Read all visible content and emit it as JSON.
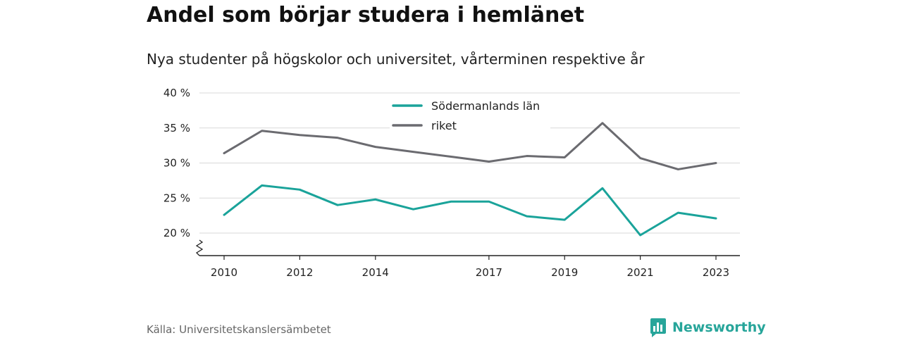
{
  "title": "Andel som börjar studera i hemlänet",
  "subtitle": "Nya studenter på högskolor och universitet, vårterminen respektive år",
  "source": "Källa: Universitetskanslersämbetet",
  "brand": {
    "name": "Newsworthy",
    "icon": "newsworthy-logo-icon",
    "color": "#27a59a"
  },
  "chart_data": {
    "type": "line",
    "x": [
      2010,
      2011,
      2012,
      2013,
      2014,
      2015,
      2016,
      2017,
      2018,
      2019,
      2020,
      2021,
      2022,
      2023
    ],
    "x_tick_labels": [
      "2010",
      "2012",
      "2014",
      "2017",
      "2019",
      "2021",
      "2023"
    ],
    "y_ticks": [
      20,
      25,
      30,
      35,
      40
    ],
    "y_tick_labels": [
      "20 %",
      "25 %",
      "30 %",
      "35 %",
      "40 %"
    ],
    "ylim": [
      17,
      40
    ],
    "y_axis_break": true,
    "grid": true,
    "legend_position": "top-center",
    "series": [
      {
        "name": "Södermanlands län",
        "color": "#1aa39a",
        "values": [
          22.6,
          26.8,
          26.2,
          24.0,
          24.8,
          23.4,
          24.5,
          24.5,
          22.4,
          21.9,
          26.4,
          19.7,
          22.9,
          22.1
        ]
      },
      {
        "name": "riket",
        "color": "#6b6b70",
        "values": [
          31.4,
          34.6,
          34.0,
          33.6,
          32.3,
          31.6,
          30.9,
          30.2,
          31.0,
          30.8,
          35.7,
          30.7,
          29.1,
          30.0
        ]
      }
    ]
  }
}
